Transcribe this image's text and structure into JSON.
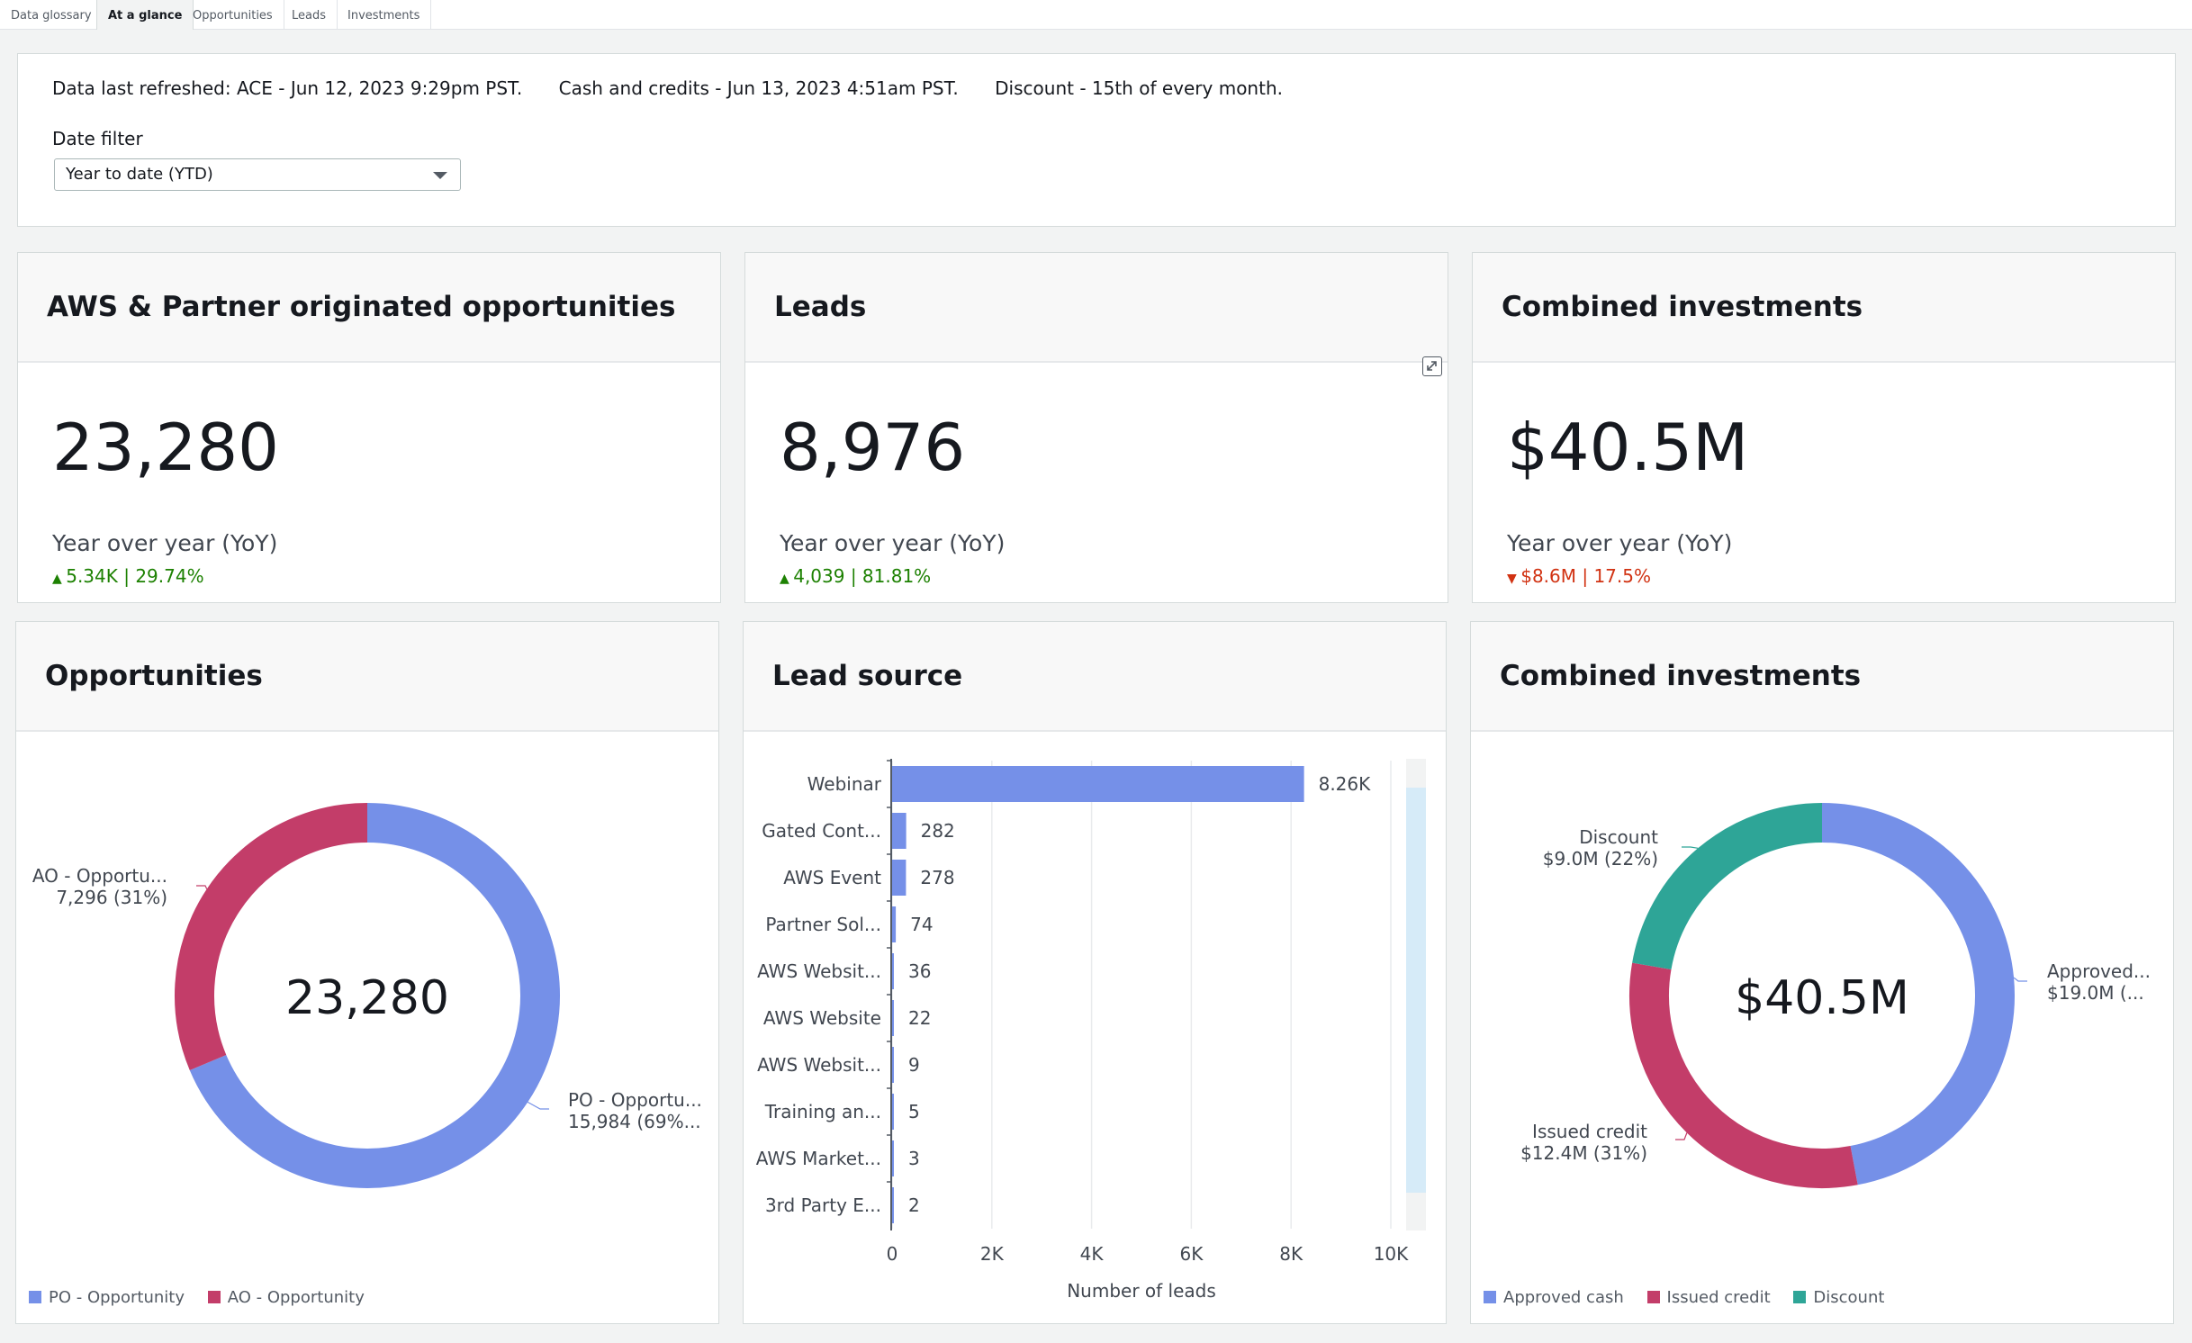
{
  "tabs": [
    {
      "label": "Data glossary",
      "active": false
    },
    {
      "label": "At a glance",
      "active": true
    },
    {
      "label": "Opportunities",
      "active": false
    },
    {
      "label": "Leads",
      "active": false
    },
    {
      "label": "Investments",
      "active": false
    }
  ],
  "header": {
    "refresh_ace": "Data last refreshed: ACE - Jun 12, 2023 9:29pm PST.",
    "refresh_cash": "Cash and credits - Jun 13, 2023 4:51am PST.",
    "refresh_discount": "Discount - 15th of every month.",
    "date_filter_label": "Date filter",
    "date_filter_value": "Year to date (YTD)"
  },
  "kpis": {
    "opportunities": {
      "title": "AWS & Partner originated opportunities",
      "value": "23,280",
      "yoy_label": "Year over year (YoY)",
      "yoy_value": "5.34K | 29.74%",
      "trend": "up"
    },
    "leads": {
      "title": "Leads",
      "value": "8,976",
      "yoy_label": "Year over year (YoY)",
      "yoy_value": "4,039 | 81.81%",
      "trend": "up"
    },
    "investments": {
      "title": "Combined investments",
      "value": "$40.5M",
      "yoy_label": "Year over year (YoY)",
      "yoy_value": "$8.6M | 17.5%",
      "trend": "down"
    }
  },
  "colors": {
    "blue": "#7590e8",
    "pink": "#c33d69",
    "teal": "#2ea597",
    "up": "#1d8102",
    "down": "#d13212"
  },
  "chart_data": [
    {
      "type": "pie",
      "panel_title": "Opportunities",
      "center_label": "23,280",
      "slices": [
        {
          "label": "PO - Opportu...",
          "value": 15984,
          "display": "15,984 (69%...",
          "color": "#7590e8"
        },
        {
          "label": "AO - Opportu...",
          "value": 7296,
          "display": "7,296 (31%)",
          "color": "#c33d69"
        }
      ],
      "legend": [
        "PO - Opportunity",
        "AO - Opportunity"
      ],
      "legend_placement": "bottom-left"
    },
    {
      "type": "bar",
      "orientation": "horizontal",
      "panel_title": "Lead source",
      "categories": [
        "Webinar",
        "Gated Cont...",
        "AWS Event",
        "Partner Sol...",
        "AWS Websit...",
        "AWS Website",
        "AWS Websit...",
        "Training an...",
        "AWS Market...",
        "3rd Party E..."
      ],
      "values": [
        8260,
        282,
        278,
        74,
        36,
        22,
        9,
        5,
        3,
        2
      ],
      "value_labels": [
        "8.26K",
        "282",
        "278",
        "74",
        "36",
        "22",
        "9",
        "5",
        "3",
        "2"
      ],
      "xlabel": "Number of leads",
      "xticks": [
        "0",
        "2K",
        "4K",
        "6K",
        "8K",
        "10K"
      ],
      "xlim": [
        0,
        10000
      ],
      "grid": true,
      "color": "#7590e8"
    },
    {
      "type": "pie",
      "panel_title": "Combined investments",
      "center_label": "$40.5M",
      "slices": [
        {
          "label": "Approved...",
          "value": 19.0,
          "display": "$19.0M (...",
          "color": "#7590e8"
        },
        {
          "label": "Issued credit",
          "value": 12.4,
          "display": "$12.4M (31%)",
          "color": "#c33d69"
        },
        {
          "label": "Discount",
          "value": 9.0,
          "display": "$9.0M (22%)",
          "color": "#2ea597"
        }
      ],
      "legend": [
        "Approved cash",
        "Issued credit",
        "Discount"
      ],
      "legend_placement": "bottom-left"
    }
  ]
}
